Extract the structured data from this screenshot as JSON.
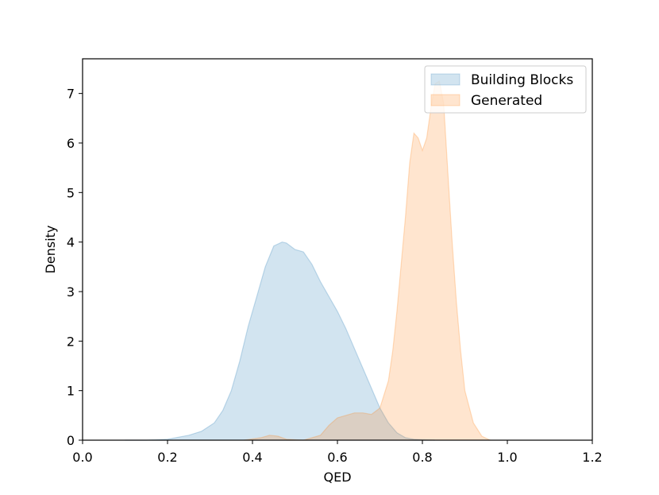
{
  "chart_data": {
    "type": "area",
    "title": "",
    "xlabel": "QED",
    "ylabel": "Density",
    "xlim": [
      0.0,
      1.2
    ],
    "ylim": [
      0.0,
      7.7
    ],
    "xticks": [
      0.0,
      0.2,
      0.4,
      0.6,
      0.8,
      1.0,
      1.2
    ],
    "yticks": [
      0,
      1,
      2,
      3,
      4,
      5,
      6,
      7
    ],
    "xtick_labels": [
      "0.0",
      "0.2",
      "0.4",
      "0.6",
      "0.8",
      "1.0",
      "1.2"
    ],
    "ytick_labels": [
      "0",
      "1",
      "2",
      "3",
      "4",
      "5",
      "6",
      "7"
    ],
    "grid": false,
    "legend": {
      "location": "top-right",
      "entries": [
        "Building Blocks",
        "Generated"
      ]
    },
    "series": [
      {
        "name": "Building Blocks",
        "color": "#1f77b4",
        "fill_opacity": 0.2,
        "x": [
          0.1,
          0.15,
          0.2,
          0.25,
          0.28,
          0.31,
          0.33,
          0.35,
          0.37,
          0.39,
          0.41,
          0.43,
          0.45,
          0.47,
          0.48,
          0.5,
          0.52,
          0.54,
          0.56,
          0.58,
          0.6,
          0.62,
          0.64,
          0.66,
          0.68,
          0.7,
          0.72,
          0.74,
          0.76,
          0.78,
          0.8,
          0.83
        ],
        "y": [
          0.0,
          0.0,
          0.02,
          0.1,
          0.18,
          0.35,
          0.6,
          1.0,
          1.6,
          2.3,
          2.9,
          3.5,
          3.92,
          4.0,
          3.98,
          3.85,
          3.8,
          3.55,
          3.2,
          2.9,
          2.6,
          2.25,
          1.85,
          1.45,
          1.05,
          0.65,
          0.35,
          0.15,
          0.05,
          0.02,
          0.01,
          0.0
        ]
      },
      {
        "name": "Generated",
        "color": "#ff7f0e",
        "fill_opacity": 0.2,
        "x": [
          0.38,
          0.42,
          0.44,
          0.46,
          0.48,
          0.52,
          0.56,
          0.58,
          0.6,
          0.62,
          0.64,
          0.66,
          0.68,
          0.7,
          0.72,
          0.73,
          0.74,
          0.76,
          0.77,
          0.78,
          0.79,
          0.8,
          0.81,
          0.82,
          0.83,
          0.84,
          0.85,
          0.86,
          0.87,
          0.88,
          0.89,
          0.9,
          0.92,
          0.94,
          0.96
        ],
        "y": [
          0.0,
          0.05,
          0.1,
          0.08,
          0.02,
          0.0,
          0.1,
          0.3,
          0.45,
          0.5,
          0.55,
          0.55,
          0.52,
          0.65,
          1.2,
          1.8,
          2.6,
          4.5,
          5.6,
          6.2,
          6.1,
          5.85,
          6.1,
          6.7,
          7.2,
          7.25,
          6.8,
          5.4,
          4.0,
          2.8,
          1.8,
          1.0,
          0.35,
          0.08,
          0.0
        ]
      }
    ]
  }
}
